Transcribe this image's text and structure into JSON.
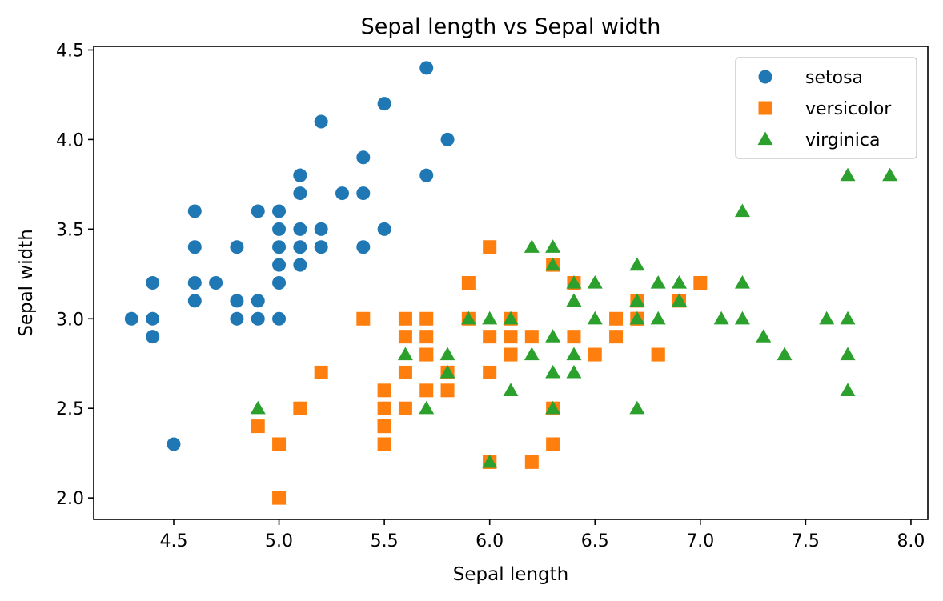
{
  "chart_data": {
    "type": "scatter",
    "title": "Sepal length vs Sepal width",
    "xlabel": "Sepal length",
    "ylabel": "Sepal width",
    "xlim": [
      4.12,
      8.08
    ],
    "ylim": [
      1.88,
      4.52
    ],
    "xticks": [
      4.5,
      5.0,
      5.5,
      6.0,
      6.5,
      7.0,
      7.5,
      8.0
    ],
    "xtick_labels": [
      "4.5",
      "5.0",
      "5.5",
      "6.0",
      "6.5",
      "7.0",
      "7.5",
      "8.0"
    ],
    "yticks": [
      2.0,
      2.5,
      3.0,
      3.5,
      4.0,
      4.5
    ],
    "ytick_labels": [
      "2.0",
      "2.5",
      "3.0",
      "3.5",
      "4.0",
      "4.5"
    ],
    "grid": false,
    "legend_position": "top-right",
    "series": [
      {
        "name": "setosa",
        "marker": "circle",
        "color": "#1f77b4",
        "x": [
          4.3,
          4.4,
          4.4,
          4.4,
          4.5,
          4.6,
          4.6,
          4.6,
          4.6,
          4.7,
          4.8,
          4.8,
          4.8,
          4.9,
          4.9,
          4.9,
          5.0,
          5.0,
          5.0,
          5.0,
          5.0,
          5.0,
          5.1,
          5.1,
          5.1,
          5.1,
          5.1,
          5.1,
          5.2,
          5.2,
          5.2,
          5.3,
          5.4,
          5.4,
          5.4,
          5.5,
          5.5,
          5.7,
          5.7,
          5.8
        ],
        "y": [
          3.0,
          2.9,
          3.0,
          3.2,
          2.3,
          3.1,
          3.2,
          3.4,
          3.6,
          3.2,
          3.0,
          3.1,
          3.4,
          3.0,
          3.1,
          3.6,
          3.0,
          3.2,
          3.3,
          3.4,
          3.5,
          3.6,
          3.3,
          3.4,
          3.5,
          3.7,
          3.8,
          3.8,
          3.4,
          3.5,
          4.1,
          3.7,
          3.4,
          3.7,
          3.9,
          3.5,
          4.2,
          3.8,
          4.4,
          4.0
        ]
      },
      {
        "name": "versicolor",
        "marker": "square",
        "color": "#ff7f0e",
        "x": [
          4.9,
          5.0,
          5.0,
          5.1,
          5.2,
          5.4,
          5.5,
          5.5,
          5.5,
          5.5,
          5.5,
          5.6,
          5.6,
          5.6,
          5.6,
          5.7,
          5.7,
          5.7,
          5.7,
          5.7,
          5.8,
          5.8,
          5.8,
          5.9,
          5.9,
          6.0,
          6.0,
          6.0,
          6.0,
          6.0,
          6.1,
          6.1,
          6.1,
          6.1,
          6.2,
          6.2,
          6.3,
          6.3,
          6.3,
          6.4,
          6.4,
          6.5,
          6.6,
          6.6,
          6.7,
          6.7,
          6.7,
          6.8,
          6.8,
          6.9,
          7.0
        ],
        "y": [
          2.4,
          2.0,
          2.3,
          2.5,
          2.7,
          3.0,
          2.3,
          2.4,
          2.5,
          2.6,
          2.4,
          2.5,
          2.7,
          2.9,
          3.0,
          2.6,
          2.8,
          2.9,
          3.0,
          2.8,
          2.6,
          2.7,
          2.7,
          3.0,
          3.2,
          2.2,
          2.7,
          2.9,
          3.4,
          2.2,
          2.8,
          2.9,
          3.0,
          2.8,
          2.2,
          2.9,
          2.3,
          2.5,
          3.3,
          2.9,
          3.2,
          2.8,
          2.9,
          3.0,
          3.0,
          3.1,
          3.0,
          2.8,
          2.8,
          3.1,
          3.2
        ]
      },
      {
        "name": "virginica",
        "marker": "triangle",
        "color": "#2ca02c",
        "x": [
          4.9,
          5.6,
          5.7,
          5.8,
          5.8,
          5.9,
          6.0,
          6.0,
          6.1,
          6.1,
          6.2,
          6.2,
          6.3,
          6.3,
          6.3,
          6.3,
          6.3,
          6.4,
          6.4,
          6.4,
          6.4,
          6.5,
          6.5,
          6.7,
          6.7,
          6.7,
          6.7,
          6.8,
          6.8,
          6.9,
          6.9,
          7.1,
          7.2,
          7.2,
          7.2,
          7.3,
          7.4,
          7.6,
          7.7,
          7.7,
          7.7,
          7.7,
          7.9
        ],
        "y": [
          2.5,
          2.8,
          2.5,
          2.7,
          2.8,
          3.0,
          2.2,
          3.0,
          2.6,
          3.0,
          2.8,
          3.4,
          2.5,
          2.7,
          2.9,
          3.3,
          3.4,
          2.7,
          2.8,
          3.1,
          3.2,
          3.0,
          3.2,
          2.5,
          3.0,
          3.1,
          3.3,
          3.0,
          3.2,
          3.1,
          3.2,
          3.0,
          3.0,
          3.2,
          3.6,
          2.9,
          2.8,
          3.0,
          2.6,
          2.8,
          3.0,
          3.8,
          3.8
        ]
      }
    ]
  }
}
